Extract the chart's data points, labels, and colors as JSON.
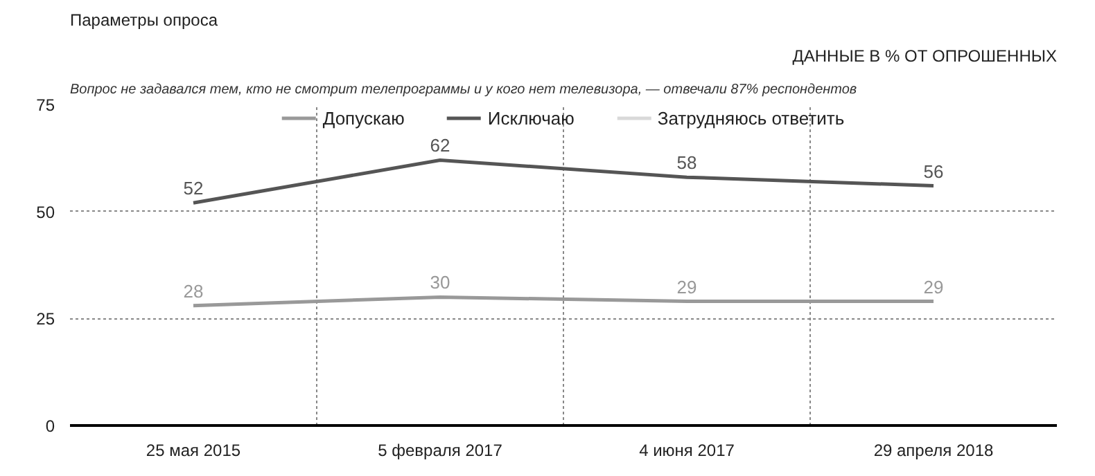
{
  "chart_data": {
    "type": "line",
    "title": "Параметры опроса",
    "subtitle": "ДАННЫЕ В % ОТ ОПРОШЕННЫХ",
    "annotations": [
      "Вопрос не задавался тем, кто не смотрит телепрограммы и у кого нет телевизора, — отвечали 87% респондентов"
    ],
    "categories": [
      "25 мая 2015",
      "5 февраля 2017",
      "4 июня 2017",
      "29 апреля 2018"
    ],
    "series": [
      {
        "name": "Допускаю",
        "color": "#999999",
        "values": [
          28,
          30,
          29,
          29
        ]
      },
      {
        "name": "Исключаю",
        "color": "#555555",
        "values": [
          52,
          62,
          58,
          56
        ]
      },
      {
        "name": "Затрудняюсь ответить",
        "color": "#d9d9d9",
        "values": [
          null,
          null,
          null,
          null
        ]
      }
    ],
    "ylim": [
      0,
      75
    ],
    "yticks": [
      0,
      25,
      50,
      75
    ],
    "grid": true,
    "legend": "top",
    "data_labels": true,
    "marker": "none",
    "line_style": "solid"
  }
}
